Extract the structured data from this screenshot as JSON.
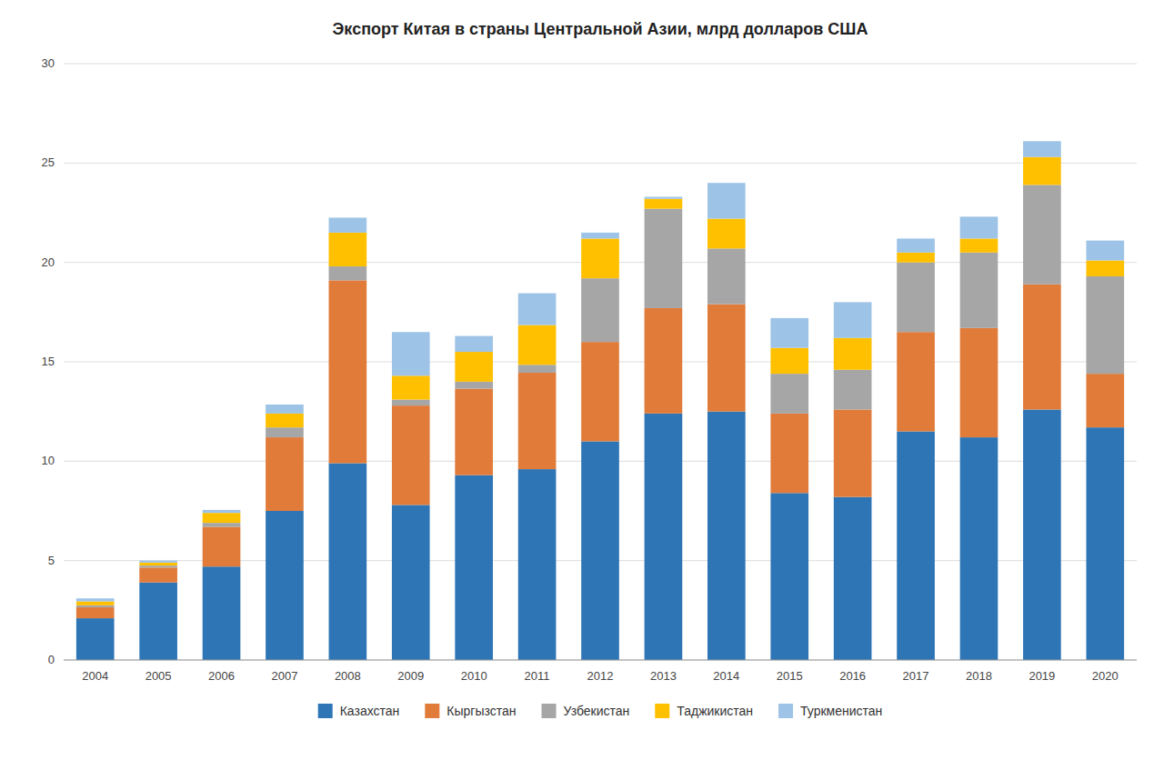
{
  "chart_data": {
    "type": "bar",
    "stacked": true,
    "title": "Экспорт Китая в страны Центральной Азии, млрд долларов США",
    "categories": [
      "2004",
      "2005",
      "2006",
      "2007",
      "2008",
      "2009",
      "2010",
      "2011",
      "2012",
      "2013",
      "2014",
      "2015",
      "2016",
      "2017",
      "2018",
      "2019",
      "2020"
    ],
    "series": [
      {
        "name": "Казахстан",
        "color": "#2E75B6",
        "values": [
          2.1,
          3.9,
          4.7,
          7.5,
          9.9,
          7.8,
          9.3,
          9.6,
          11.0,
          12.4,
          12.5,
          8.4,
          8.2,
          11.5,
          11.2,
          12.6,
          11.7
        ]
      },
      {
        "name": "Кыргызстан",
        "color": "#E07B39",
        "values": [
          0.55,
          0.75,
          2.0,
          3.7,
          9.2,
          5.0,
          4.35,
          4.85,
          5.0,
          5.3,
          5.4,
          4.0,
          4.4,
          5.0,
          5.5,
          6.3,
          2.7
        ]
      },
      {
        "name": "Узбекистан",
        "color": "#A6A6A6",
        "values": [
          0.1,
          0.1,
          0.2,
          0.5,
          0.7,
          0.3,
          0.35,
          0.4,
          3.2,
          5.0,
          2.8,
          2.0,
          2.0,
          3.5,
          3.8,
          5.0,
          4.9
        ]
      },
      {
        "name": "Таджикистан",
        "color": "#FFC000",
        "values": [
          0.2,
          0.15,
          0.5,
          0.7,
          1.7,
          1.2,
          1.5,
          2.0,
          2.0,
          0.5,
          1.5,
          1.3,
          1.6,
          0.5,
          0.7,
          1.4,
          0.8
        ]
      },
      {
        "name": "Туркменистан",
        "color": "#9DC3E6",
        "values": [
          0.15,
          0.1,
          0.15,
          0.45,
          0.75,
          2.2,
          0.8,
          1.6,
          0.3,
          0.1,
          1.8,
          1.5,
          1.8,
          0.7,
          1.1,
          0.8,
          1.0
        ]
      }
    ],
    "ylim": [
      0,
      30
    ],
    "yticks": [
      0,
      5,
      10,
      15,
      20,
      25,
      30
    ],
    "grid": true,
    "legend": "bottom"
  }
}
